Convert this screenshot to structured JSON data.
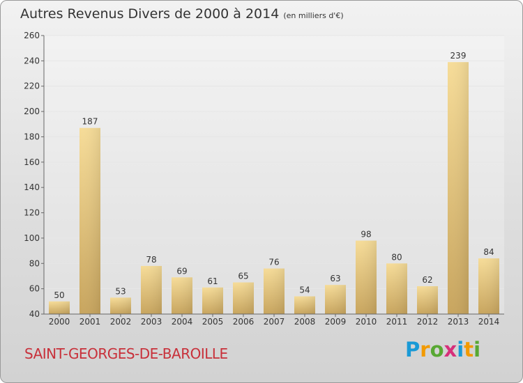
{
  "header": {
    "title": "Autres Revenus Divers de 2000 à 2014",
    "unit": "(en milliers d'€)"
  },
  "footer": {
    "commune": "SAINT-GEORGES-DE-BAROILLE",
    "logo_letters": [
      "P",
      "r",
      "o",
      "x",
      "i",
      "t",
      "i"
    ],
    "logo_colors": [
      "#1a9ad6",
      "#f29a00",
      "#58a833",
      "#d62f7a",
      "#1a9ad6",
      "#f29a00",
      "#58a833"
    ]
  },
  "colors": {
    "bar_light": "#f6dc98",
    "bar_dark": "#c8a55e",
    "axis": "#666666",
    "grid": "#e6e6e6",
    "title": "#c8303a"
  },
  "chart_data": {
    "type": "bar",
    "title": "Autres Revenus Divers de 2000 à 2014",
    "subtitle": "(en milliers d'€)",
    "xlabel": "",
    "ylabel": "",
    "categories": [
      "2000",
      "2001",
      "2002",
      "2003",
      "2004",
      "2005",
      "2006",
      "2007",
      "2008",
      "2009",
      "2010",
      "2011",
      "2012",
      "2013",
      "2014"
    ],
    "values": [
      50,
      187,
      53,
      78,
      69,
      61,
      65,
      76,
      54,
      63,
      98,
      80,
      62,
      239,
      84
    ],
    "ylim": [
      40,
      260
    ],
    "yticks": [
      40,
      60,
      80,
      100,
      120,
      140,
      160,
      180,
      200,
      220,
      240,
      260
    ],
    "grid": true,
    "data_labels": true
  }
}
